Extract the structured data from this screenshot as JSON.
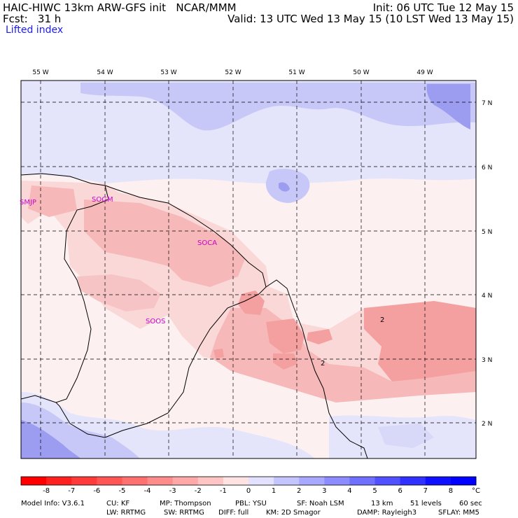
{
  "header": {
    "model_line": "HAIC-HIWC 13km ARW-GFS init   NCAR/MMM",
    "forecast_line": "Fcst:   31 h",
    "init_line": "Init: 06 UTC Tue 12 May 15",
    "valid_line": "Valid: 13 UTC Wed 13 May 15 (10 LST Wed 13 May 15)",
    "field_name": "Lifted index"
  },
  "map": {
    "lon_labels": [
      "55 W",
      "54 W",
      "53 W",
      "52 W",
      "51 W",
      "50 W",
      "49 W"
    ],
    "lat_labels": [
      "7 N",
      "6 N",
      "5 N",
      "4 N",
      "3 N",
      "2 N"
    ],
    "stations": [
      "SMJP",
      "SOGM",
      "SOCA",
      "SOOS"
    ],
    "contour_labels": [
      "2",
      "2"
    ]
  },
  "colorbar": {
    "ticks": [
      "-8",
      "-7",
      "-6",
      "-5",
      "-4",
      "-3",
      "-2",
      "-1",
      "0",
      "1",
      "2",
      "3",
      "4",
      "5",
      "6",
      "7",
      "8"
    ],
    "unit": "°C",
    "colors": [
      "#ff0000",
      "#ff2020",
      "#ff3a3a",
      "#ff5555",
      "#ff7070",
      "#ff8c8c",
      "#ffa8a8",
      "#ffc4c4",
      "#ffe2e2",
      "#e2e2ff",
      "#c4c4ff",
      "#a8a8ff",
      "#8c8cff",
      "#7070ff",
      "#5050ff",
      "#3030ff",
      "#1010ff",
      "#0000ff"
    ]
  },
  "footer": {
    "line1": [
      "Model Info: V3.6.1",
      "CU: KF",
      "MP: Thompson",
      "PBL: YSU",
      "SF: Noah LSM",
      "13 km",
      "51 levels",
      "60 sec"
    ],
    "line2": [
      "LW: RRTMG",
      "SW: RRTMG",
      "DIFF: full",
      "KM: 2D Smagor",
      "DAMP: Rayleigh3",
      "SFLAY: MM5"
    ]
  }
}
